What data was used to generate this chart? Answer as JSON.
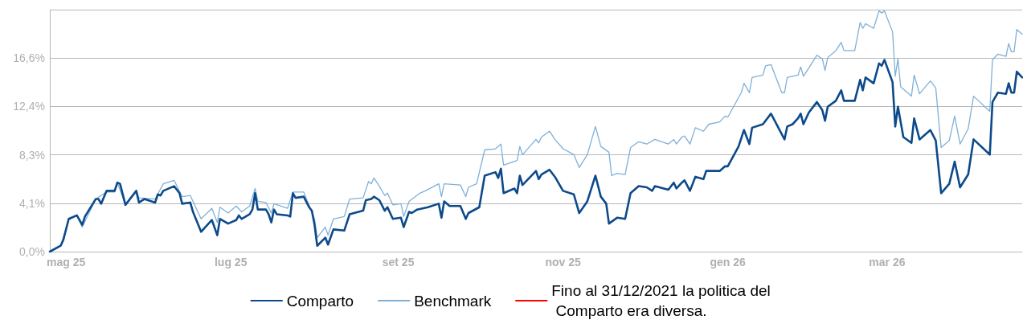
{
  "chart_data": {
    "type": "line",
    "xlim": [
      "2025-04-25",
      "2026-04-20"
    ],
    "xticks": [
      {
        "value": "2025-05-01",
        "label": "mag 25"
      },
      {
        "value": "2025-07-01",
        "label": "lug 25"
      },
      {
        "value": "2025-09-01",
        "label": "set 25"
      },
      {
        "value": "2025-11-01",
        "label": "nov 25"
      },
      {
        "value": "2026-01-01",
        "label": "gen 26"
      },
      {
        "value": "2026-03-01",
        "label": "mar 26"
      }
    ],
    "ylim": [
      0,
      20.7
    ],
    "yticks": [
      {
        "value": 0,
        "label": "0,0%"
      },
      {
        "value": 4.14,
        "label": "4,1%"
      },
      {
        "value": 8.28,
        "label": "8,3%"
      },
      {
        "value": 12.42,
        "label": "12,4%"
      },
      {
        "value": 16.56,
        "label": "16,6%"
      },
      {
        "value": 20.7,
        "label": null
      }
    ],
    "grid": "y",
    "legend": "bottom",
    "marker": "none",
    "line_style": "solid",
    "series": [
      {
        "name": "Comparto",
        "color": "#0d4a8a",
        "x": [
          "2025-04-25",
          "2025-04-29",
          "2025-04-30",
          "2025-05-02",
          "2025-05-05",
          "2025-05-07",
          "2025-05-08",
          "2025-05-12",
          "2025-05-13",
          "2025-05-14",
          "2025-05-16",
          "2025-05-19",
          "2025-05-20",
          "2025-05-21",
          "2025-05-23",
          "2025-05-27",
          "2025-05-28",
          "2025-05-30",
          "2025-06-03",
          "2025-06-04",
          "2025-06-05",
          "2025-06-06",
          "2025-06-10",
          "2025-06-12",
          "2025-06-13",
          "2025-06-16",
          "2025-06-17",
          "2025-06-20",
          "2025-06-24",
          "2025-06-26",
          "2025-06-27",
          "2025-06-30",
          "2025-07-03",
          "2025-07-04",
          "2025-07-05",
          "2025-07-08",
          "2025-07-09",
          "2025-07-10",
          "2025-07-11",
          "2025-07-14",
          "2025-07-15",
          "2025-07-16",
          "2025-07-17",
          "2025-07-18",
          "2025-07-22",
          "2025-07-23",
          "2025-07-24",
          "2025-07-25",
          "2025-07-28",
          "2025-07-30",
          "2025-07-31",
          "2025-08-01",
          "2025-08-02",
          "2025-08-05",
          "2025-08-06",
          "2025-08-08",
          "2025-08-12",
          "2025-08-14",
          "2025-08-19",
          "2025-08-20",
          "2025-08-22",
          "2025-08-23",
          "2025-08-25",
          "2025-08-27",
          "2025-08-28",
          "2025-08-30",
          "2025-09-02",
          "2025-09-03",
          "2025-09-05",
          "2025-09-06",
          "2025-09-08",
          "2025-09-12",
          "2025-09-16",
          "2025-09-17",
          "2025-09-18",
          "2025-09-20",
          "2025-09-24",
          "2025-09-26",
          "2025-09-27",
          "2025-10-01",
          "2025-10-03",
          "2025-10-07",
          "2025-10-08",
          "2025-10-09",
          "2025-10-10",
          "2025-10-14",
          "2025-10-15",
          "2025-10-16",
          "2025-10-17",
          "2025-10-22",
          "2025-10-23",
          "2025-10-24",
          "2025-10-27",
          "2025-10-29",
          "2025-11-01",
          "2025-11-05",
          "2025-11-07",
          "2025-11-10",
          "2025-11-13",
          "2025-11-15",
          "2025-11-17",
          "2025-11-18",
          "2025-11-21",
          "2025-11-24",
          "2025-11-26",
          "2025-11-29",
          "2025-12-02",
          "2025-12-04",
          "2025-12-05",
          "2025-12-10",
          "2025-12-12",
          "2025-12-13",
          "2025-12-15",
          "2025-12-16",
          "2025-12-18",
          "2025-12-20",
          "2025-12-23",
          "2025-12-24",
          "2025-12-29",
          "2025-12-31",
          "2026-01-01",
          "2026-01-05",
          "2026-01-07",
          "2026-01-09",
          "2026-01-10",
          "2026-01-14",
          "2026-01-17",
          "2026-01-22",
          "2026-01-23",
          "2026-01-25",
          "2026-01-27",
          "2026-01-28",
          "2026-01-29",
          "2026-01-31",
          "2026-02-03",
          "2026-02-05",
          "2026-02-06",
          "2026-02-07",
          "2026-02-10",
          "2026-02-12",
          "2026-02-13",
          "2026-02-17",
          "2026-02-19",
          "2026-02-20",
          "2026-02-21",
          "2026-02-24",
          "2026-02-26",
          "2026-02-27",
          "2026-02-28",
          "2026-03-03",
          "2026-03-04",
          "2026-03-05",
          "2026-03-07",
          "2026-03-10",
          "2026-03-11",
          "2026-03-13",
          "2026-03-17",
          "2026-03-19",
          "2026-03-21",
          "2026-03-24",
          "2026-03-26",
          "2026-03-28",
          "2026-03-31",
          "2026-04-02",
          "2026-04-08",
          "2026-04-09",
          "2026-04-11",
          "2026-04-14",
          "2026-04-15",
          "2026-04-16",
          "2026-04-17",
          "2026-04-18",
          "2026-04-20"
        ],
        "values": [
          0,
          0.5,
          1.0,
          2.8,
          3.1,
          2.3,
          3.0,
          4.5,
          4.5,
          4.1,
          5.2,
          5.2,
          5.9,
          5.8,
          4.0,
          5.2,
          4.2,
          4.5,
          4.2,
          4.9,
          4.8,
          5.2,
          5.6,
          5.0,
          4.1,
          4.2,
          3.4,
          1.7,
          2.7,
          1.4,
          2.8,
          2.4,
          2.7,
          3.1,
          2.8,
          3.2,
          3.6,
          5.0,
          3.6,
          3.6,
          3.2,
          2.5,
          3.6,
          3.2,
          3.1,
          3.0,
          5.0,
          4.6,
          4.7,
          3.8,
          3.5,
          2.3,
          0.5,
          1.2,
          0.6,
          1.9,
          1.8,
          3.2,
          3.5,
          4.4,
          4.5,
          4.7,
          4.4,
          3.5,
          3.8,
          2.8,
          2.9,
          2.1,
          3.4,
          3.3,
          3.6,
          3.8,
          4.1,
          2.9,
          4.3,
          3.9,
          3.9,
          2.8,
          3.3,
          3.8,
          6.5,
          6.8,
          6.3,
          7.1,
          5.0,
          5.4,
          5.0,
          6.5,
          5.7,
          6.9,
          6.2,
          6.6,
          7.0,
          6.4,
          5.2,
          4.9,
          3.3,
          4.3,
          6.5,
          4.7,
          4.1,
          2.4,
          2.9,
          2.8,
          5.0,
          5.6,
          5.5,
          5.2,
          5.6,
          5.3,
          5.9,
          5.4,
          5.9,
          6.1,
          5.2,
          6.4,
          6.2,
          6.9,
          6.9,
          7.3,
          7.3,
          9.0,
          10.4,
          9.2,
          10.6,
          10.9,
          11.8,
          9.6,
          10.7,
          10.9,
          11.4,
          11.8,
          10.9,
          11.9,
          12.8,
          12.1,
          11.2,
          12.4,
          12.9,
          13.8,
          12.9,
          12.9,
          14.7,
          13.8,
          14.9,
          14.4,
          16.1,
          15.9,
          16.4,
          14.5,
          10.7,
          12.4,
          9.8,
          9.3,
          11.4,
          9.6,
          10.4,
          9.5,
          5.0,
          5.8,
          7.7,
          5.5,
          6.6,
          9.6,
          8.3,
          12.8,
          13.6,
          13.5,
          14.4,
          13.6,
          13.6,
          15.4,
          14.9
        ]
      },
      {
        "name": "Benchmark",
        "color": "#7fb0d8",
        "x": [
          "2025-04-25",
          "2025-04-29",
          "2025-05-02",
          "2025-05-05",
          "2025-05-07",
          "2025-05-12",
          "2025-05-16",
          "2025-05-19",
          "2025-05-20",
          "2025-05-23",
          "2025-05-27",
          "2025-05-28",
          "2025-06-03",
          "2025-06-06",
          "2025-06-10",
          "2025-06-13",
          "2025-06-16",
          "2025-06-20",
          "2025-06-24",
          "2025-06-26",
          "2025-06-27",
          "2025-06-30",
          "2025-07-03",
          "2025-07-05",
          "2025-07-08",
          "2025-07-10",
          "2025-07-11",
          "2025-07-14",
          "2025-07-16",
          "2025-07-17",
          "2025-07-22",
          "2025-07-24",
          "2025-07-28",
          "2025-08-01",
          "2025-08-02",
          "2025-08-05",
          "2025-08-06",
          "2025-08-08",
          "2025-08-12",
          "2025-08-14",
          "2025-08-19",
          "2025-08-21",
          "2025-08-22",
          "2025-08-23",
          "2025-08-25",
          "2025-08-27",
          "2025-08-28",
          "2025-08-30",
          "2025-09-02",
          "2025-09-03",
          "2025-09-05",
          "2025-09-09",
          "2025-09-11",
          "2025-09-16",
          "2025-09-17",
          "2025-09-18",
          "2025-09-24",
          "2025-09-26",
          "2025-09-27",
          "2025-09-30",
          "2025-10-03",
          "2025-10-07",
          "2025-10-09",
          "2025-10-10",
          "2025-10-15",
          "2025-10-16",
          "2025-10-17",
          "2025-10-22",
          "2025-10-23",
          "2025-10-24",
          "2025-10-27",
          "2025-10-29",
          "2025-11-01",
          "2025-11-05",
          "2025-11-07",
          "2025-11-10",
          "2025-11-13",
          "2025-11-15",
          "2025-11-18",
          "2025-11-19",
          "2025-11-21",
          "2025-11-24",
          "2025-11-26",
          "2025-11-29",
          "2025-12-02",
          "2025-12-05",
          "2025-12-10",
          "2025-12-12",
          "2025-12-13",
          "2025-12-15",
          "2025-12-16",
          "2025-12-18",
          "2025-12-20",
          "2025-12-23",
          "2025-12-25",
          "2025-12-29",
          "2025-12-31",
          "2026-01-01",
          "2026-01-06",
          "2026-01-07",
          "2026-01-09",
          "2026-01-10",
          "2026-01-14",
          "2026-01-15",
          "2026-01-17",
          "2026-01-21",
          "2026-01-22",
          "2026-01-23",
          "2026-01-27",
          "2026-01-28",
          "2026-01-29",
          "2026-01-31",
          "2026-02-03",
          "2026-02-05",
          "2026-02-06",
          "2026-02-07",
          "2026-02-10",
          "2026-02-12",
          "2026-02-13",
          "2026-02-17",
          "2026-02-19",
          "2026-02-20",
          "2026-02-21",
          "2026-02-24",
          "2026-02-26",
          "2026-02-27",
          "2026-02-28",
          "2026-03-03",
          "2026-03-04",
          "2026-03-05",
          "2026-03-06",
          "2026-03-10",
          "2026-03-11",
          "2026-03-13",
          "2026-03-17",
          "2026-03-19",
          "2026-03-21",
          "2026-03-24",
          "2026-03-26",
          "2026-03-28",
          "2026-03-31",
          "2026-04-02",
          "2026-04-08",
          "2026-04-09",
          "2026-04-11",
          "2026-04-14",
          "2026-04-15",
          "2026-04-16",
          "2026-04-17",
          "2026-04-18",
          "2026-04-20"
        ],
        "values": [
          0,
          0.5,
          2.7,
          3.1,
          2.1,
          4.5,
          5.1,
          5.1,
          5.9,
          4.0,
          5.2,
          4.6,
          4.5,
          5.8,
          6.1,
          4.7,
          4.8,
          2.8,
          3.7,
          2.5,
          3.8,
          3.3,
          3.9,
          3.4,
          3.9,
          5.4,
          4.3,
          4.2,
          3.3,
          4.1,
          3.7,
          5.1,
          5.1,
          2.8,
          1.2,
          2.1,
          1.4,
          2.8,
          3.0,
          4.5,
          4.6,
          6.0,
          5.8,
          6.3,
          5.6,
          4.8,
          5.0,
          4.0,
          4.1,
          3.0,
          4.3,
          5.0,
          5.2,
          5.8,
          4.7,
          5.8,
          5.7,
          4.7,
          5.5,
          5.8,
          8.7,
          8.8,
          9.2,
          7.4,
          7.8,
          9.0,
          8.3,
          9.6,
          9.3,
          9.8,
          10.3,
          9.6,
          8.8,
          8.3,
          7.2,
          8.3,
          10.7,
          9.0,
          8.5,
          6.5,
          6.7,
          6.6,
          8.9,
          9.4,
          9.2,
          9.6,
          9.2,
          9.6,
          9.2,
          9.8,
          9.9,
          9.2,
          10.6,
          10.3,
          10.9,
          11.1,
          11.6,
          11.5,
          13.6,
          14.4,
          13.6,
          14.9,
          15.1,
          15.9,
          16.0,
          13.6,
          13.6,
          14.9,
          15.1,
          15.8,
          15.0,
          15.7,
          16.8,
          16.5,
          15.5,
          16.6,
          17.2,
          17.9,
          17.2,
          17.2,
          19.6,
          19.1,
          19.5,
          19.1,
          20.6,
          20.4,
          20.6,
          18.8,
          15.0,
          16.5,
          14.1,
          13.3,
          15.1,
          13.5,
          14.6,
          14.0,
          8.9,
          9.5,
          11.6,
          9.2,
          10.5,
          13.3,
          12.0,
          16.4,
          16.9,
          16.7,
          17.8,
          17.1,
          17.1,
          19.0,
          18.6
        ]
      },
      {
        "name": "Fino al 31/12/2021 la politica del Comparto era diversa.",
        "color": "#ff0000"
      }
    ]
  }
}
